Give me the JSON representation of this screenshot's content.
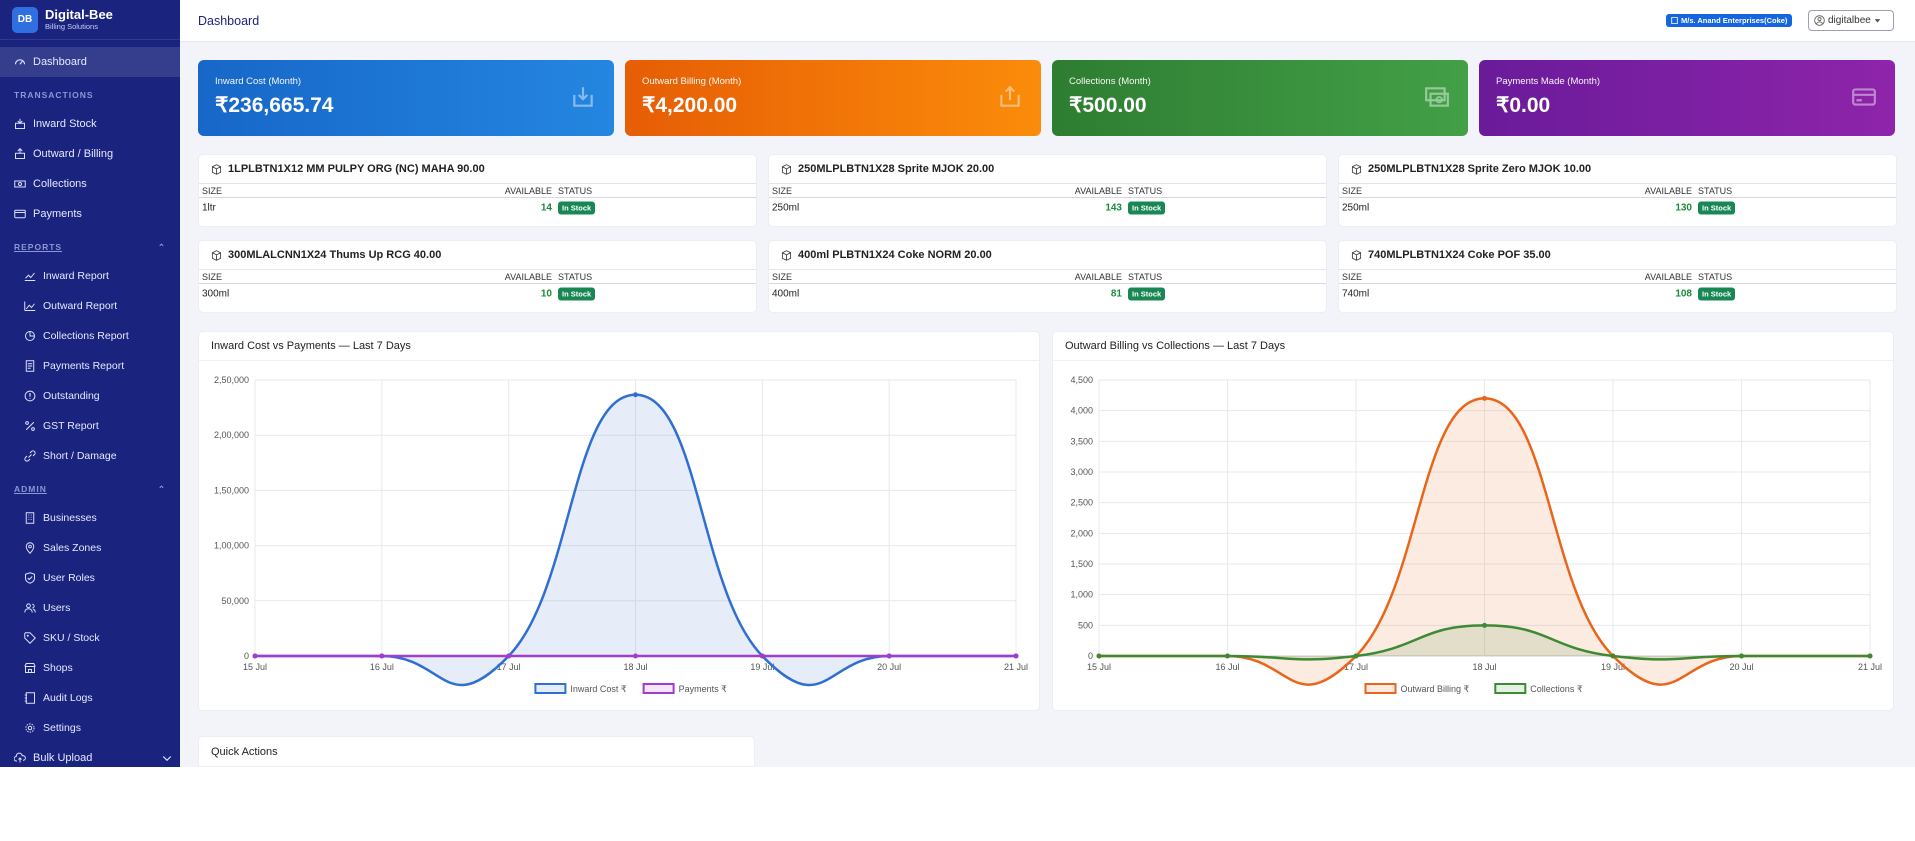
{
  "brand": {
    "logo": "DB",
    "name": "Digital-Bee",
    "tagline": "Billing Solutions"
  },
  "sidebar": {
    "dashboard": "Dashboard",
    "transactions_label": "TRANSACTIONS",
    "transactions": [
      {
        "label": "Inward Stock",
        "icon": "box-in-icon"
      },
      {
        "label": "Outward / Billing",
        "icon": "box-out-icon"
      },
      {
        "label": "Collections",
        "icon": "cash-icon"
      },
      {
        "label": "Payments",
        "icon": "card-icon"
      }
    ],
    "reports_label": "REPORTS",
    "reports": [
      {
        "label": "Inward Report",
        "icon": "line-chart-icon"
      },
      {
        "label": "Outward Report",
        "icon": "area-chart-icon"
      },
      {
        "label": "Collections Report",
        "icon": "pie-chart-icon"
      },
      {
        "label": "Payments Report",
        "icon": "receipt-icon"
      },
      {
        "label": "Outstanding",
        "icon": "alert-circle-icon"
      },
      {
        "label": "GST Report",
        "icon": "percent-icon"
      },
      {
        "label": "Short / Damage",
        "icon": "broken-link-icon"
      }
    ],
    "admin_label": "ADMIN",
    "admin": [
      {
        "label": "Businesses",
        "icon": "building-icon"
      },
      {
        "label": "Sales Zones",
        "icon": "map-pin-icon"
      },
      {
        "label": "User Roles",
        "icon": "shield-icon"
      },
      {
        "label": "Users",
        "icon": "users-icon"
      },
      {
        "label": "SKU / Stock",
        "icon": "tag-icon"
      },
      {
        "label": "Shops",
        "icon": "shop-icon"
      },
      {
        "label": "Audit Logs",
        "icon": "journal-icon"
      },
      {
        "label": "Settings",
        "icon": "gear-icon"
      }
    ],
    "bulk_upload": "Bulk Upload"
  },
  "topbar": {
    "title": "Dashboard",
    "business_badge": "M/s. Anand Enterprises(Coke)",
    "user": "digitalbee"
  },
  "kpis": [
    {
      "label": "Inward Cost (Month)",
      "value": "₹236,665.74",
      "icon": "download-icon"
    },
    {
      "label": "Outward Billing (Month)",
      "value": "₹4,200.00",
      "icon": "upload-icon"
    },
    {
      "label": "Collections (Month)",
      "value": "₹500.00",
      "icon": "cash-stack-icon"
    },
    {
      "label": "Payments Made (Month)",
      "value": "₹0.00",
      "icon": "credit-card-icon"
    }
  ],
  "stock_headers": {
    "size": "SIZE",
    "available": "AVAILABLE",
    "status": "STATUS"
  },
  "stock_cards": [
    {
      "title": "1LPLBTN1X12 MM PULPY ORG (NC) MAHA 90.00",
      "size": "1ltr",
      "available": "14",
      "status": "In Stock"
    },
    {
      "title": "250MLPLBTN1X28 Sprite MJOK 20.00",
      "size": "250ml",
      "available": "143",
      "status": "In Stock"
    },
    {
      "title": "250MLPLBTN1X28 Sprite Zero MJOK 10.00",
      "size": "250ml",
      "available": "130",
      "status": "In Stock"
    },
    {
      "title": "300MLALCNN1X24 Thums Up RCG 40.00",
      "size": "300ml",
      "available": "10",
      "status": "In Stock"
    },
    {
      "title": "400ml PLBTN1X24 Coke NORM 20.00",
      "size": "400ml",
      "available": "81",
      "status": "In Stock"
    },
    {
      "title": "740MLPLBTN1X24 Coke POF 35.00",
      "size": "740ml",
      "available": "108",
      "status": "In Stock"
    }
  ],
  "chart_data": [
    {
      "type": "area",
      "title": "Inward Cost vs Payments — Last 7 Days",
      "categories": [
        "15 Jul",
        "16 Jul",
        "17 Jul",
        "18 Jul",
        "19 Jul",
        "20 Jul",
        "21 Jul"
      ],
      "ylim": [
        0,
        250000
      ],
      "yticks": [
        "0",
        "50,000",
        "1,00,000",
        "1,50,000",
        "2,00,000",
        "2,50,000"
      ],
      "grid": true,
      "legend_position": "bottom",
      "series": [
        {
          "name": "Inward Cost ₹",
          "values": [
            0,
            0,
            0,
            236665.74,
            0,
            0,
            0
          ],
          "color": "#2f6fd1",
          "fill": "rgba(47,111,209,0.12)"
        },
        {
          "name": "Payments ₹",
          "values": [
            0,
            0,
            0,
            0,
            0,
            0,
            0
          ],
          "color": "#a23ccf",
          "fill": "rgba(162,60,207,0.12)"
        }
      ]
    },
    {
      "type": "area",
      "title": "Outward Billing vs Collections — Last 7 Days",
      "categories": [
        "15 Jul",
        "16 Jul",
        "17 Jul",
        "18 Jul",
        "19 Jul",
        "20 Jul",
        "21 Jul"
      ],
      "ylim": [
        0,
        4500
      ],
      "yticks": [
        "0",
        "500",
        "1,000",
        "1,500",
        "2,000",
        "2,500",
        "3,000",
        "3,500",
        "4,000",
        "4,500"
      ],
      "grid": true,
      "legend_position": "bottom",
      "series": [
        {
          "name": "Outward Billing ₹",
          "values": [
            0,
            0,
            0,
            4200,
            0,
            0,
            0
          ],
          "color": "#e8651a",
          "fill": "rgba(232,101,26,0.13)"
        },
        {
          "name": "Collections ₹",
          "values": [
            0,
            0,
            0,
            500,
            0,
            0,
            0
          ],
          "color": "#3d8a35",
          "fill": "rgba(61,138,53,0.13)"
        }
      ]
    }
  ],
  "quick_actions": {
    "title": "Quick Actions"
  }
}
